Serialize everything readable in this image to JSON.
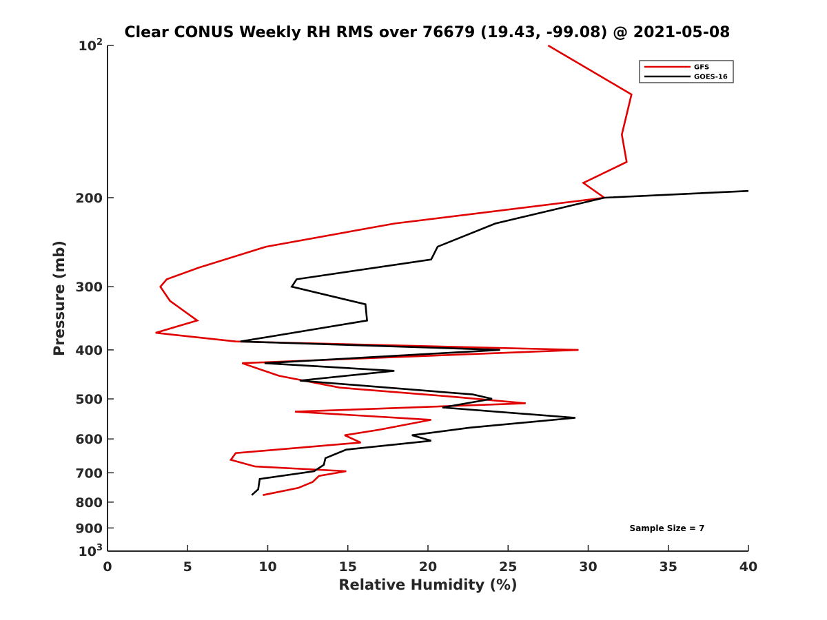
{
  "chart_data": {
    "type": "line",
    "title": "Clear CONUS Weekly RH RMS over 76679 (19.43, -99.08) @ 2021-05-08",
    "xlabel": "Relative Humidity (%)",
    "ylabel": "Pressure (mb)",
    "xlim": [
      0,
      40
    ],
    "ylim": [
      100,
      1000
    ],
    "y_scale": "log",
    "y_reversed": true,
    "x_ticks": [
      "0",
      "5",
      "10",
      "15",
      "20",
      "25",
      "30",
      "35",
      "40"
    ],
    "y_ticks": [
      {
        "value": 100,
        "base": "10",
        "exp": "2"
      },
      {
        "value": 200,
        "label": "200"
      },
      {
        "value": 300,
        "label": "300"
      },
      {
        "value": 400,
        "label": "400"
      },
      {
        "value": 500,
        "label": "500"
      },
      {
        "value": 600,
        "label": "600"
      },
      {
        "value": 700,
        "label": "700"
      },
      {
        "value": 800,
        "label": "800"
      },
      {
        "value": 900,
        "label": "900"
      },
      {
        "value": 1000,
        "base": "10",
        "exp": "3"
      }
    ],
    "legend_position": "top-right",
    "annotation": "Sample Size = 7",
    "series": [
      {
        "name": "GFS",
        "color": "#e00000",
        "points": [
          [
            27.5,
            100
          ],
          [
            32.7,
            125
          ],
          [
            32.1,
            150
          ],
          [
            32.4,
            170
          ],
          [
            29.7,
            187
          ],
          [
            31.0,
            200
          ],
          [
            17.9,
            225
          ],
          [
            9.9,
            250
          ],
          [
            5.7,
            275
          ],
          [
            3.7,
            290
          ],
          [
            3.3,
            300
          ],
          [
            3.9,
            320
          ],
          [
            5.6,
            350
          ],
          [
            3.0,
            370
          ],
          [
            8.0,
            385
          ],
          [
            29.4,
            400
          ],
          [
            8.4,
            425
          ],
          [
            10.7,
            450
          ],
          [
            14.5,
            475
          ],
          [
            21.5,
            495
          ],
          [
            26.1,
            510
          ],
          [
            11.7,
            530
          ],
          [
            20.2,
            550
          ],
          [
            17.0,
            575
          ],
          [
            14.8,
            590
          ],
          [
            15.8,
            610
          ],
          [
            8.0,
            640
          ],
          [
            7.7,
            660
          ],
          [
            9.2,
            680
          ],
          [
            14.9,
            695
          ],
          [
            13.2,
            710
          ],
          [
            12.8,
            730
          ],
          [
            11.9,
            750
          ],
          [
            9.7,
            775
          ]
        ]
      },
      {
        "name": "GOES-16",
        "color": "#000000",
        "points": [
          [
            40.0,
            194
          ],
          [
            31.0,
            200
          ],
          [
            24.2,
            225
          ],
          [
            20.6,
            250
          ],
          [
            20.2,
            265
          ],
          [
            11.8,
            290
          ],
          [
            11.5,
            300
          ],
          [
            16.1,
            325
          ],
          [
            16.2,
            350
          ],
          [
            8.3,
            385
          ],
          [
            24.5,
            400
          ],
          [
            9.8,
            425
          ],
          [
            17.9,
            440
          ],
          [
            12.0,
            460
          ],
          [
            22.8,
            490
          ],
          [
            24.0,
            500
          ],
          [
            20.9,
            520
          ],
          [
            29.2,
            545
          ],
          [
            22.6,
            570
          ],
          [
            19.0,
            590
          ],
          [
            20.2,
            605
          ],
          [
            14.9,
            630
          ],
          [
            13.6,
            655
          ],
          [
            13.5,
            675
          ],
          [
            12.9,
            695
          ],
          [
            9.5,
            720
          ],
          [
            9.4,
            755
          ],
          [
            9.0,
            775
          ]
        ]
      }
    ]
  }
}
